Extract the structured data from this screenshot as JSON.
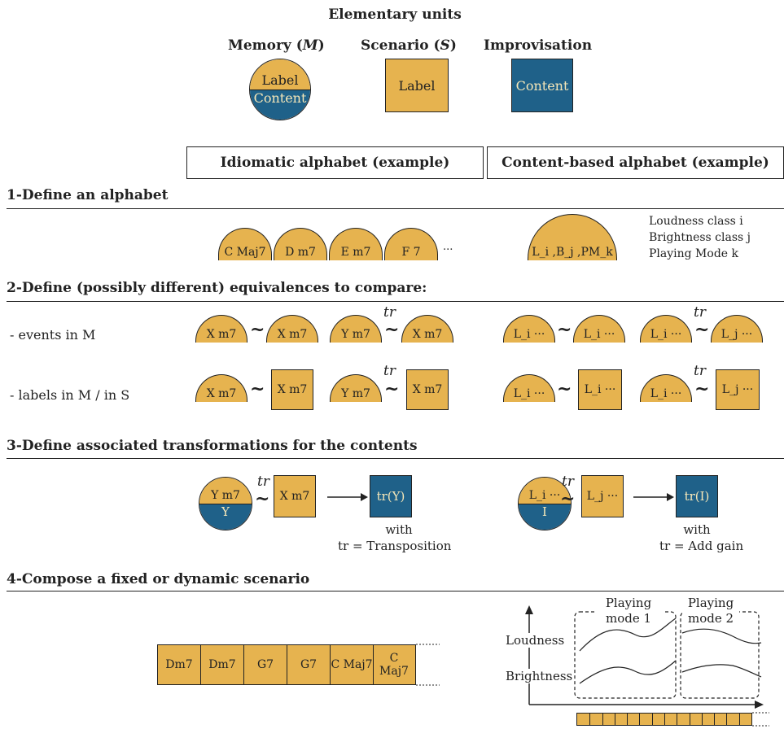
{
  "title": "Elementary units",
  "units": {
    "memory": {
      "title_prefix": "Memory (",
      "title_var": "M",
      "title_suffix": ")",
      "top": "Label",
      "bottom": "Content"
    },
    "scenario": {
      "title_prefix": "Scenario (",
      "title_var": "S",
      "title_suffix": ")",
      "content": "Label"
    },
    "improvisation": {
      "title": "Improvisation",
      "content": "Content"
    }
  },
  "columns": {
    "idiomatic": "Idiomatic alphabet (example)",
    "content_based": "Content-based alphabet (example)"
  },
  "step1": {
    "heading": "1-Define an alphabet",
    "idiomatic_labels": [
      "C Maj7",
      "D m7",
      "E m7",
      "F 7"
    ],
    "ellipsis": "...",
    "content_label": "L_i ,B_j ,PM_k",
    "legend": [
      "Loudness class i",
      "Brightness class j",
      "Playing Mode k"
    ]
  },
  "step2": {
    "heading": "2-Define (possibly different) equivalences to compare:",
    "row1_label": "- events in M",
    "row2_label": "- labels in M / in S",
    "xm7": "X m7",
    "ym7": "Y m7",
    "li": "L_i ···",
    "lj": "L_j ···",
    "tilde": "~",
    "tr": "tr"
  },
  "step3": {
    "heading": "3-Define associated transformations for the contents",
    "idiomatic": {
      "mem_top": "Y m7",
      "mem_bottom": "Y",
      "scenario": "X m7",
      "result": "tr(Y)",
      "with": "with",
      "tr_def": "tr = Transposition"
    },
    "content": {
      "mem_top": "L_i ···",
      "mem_bottom": "I",
      "scenario": "L_j ···",
      "result": "tr(I)",
      "with": "with",
      "tr_def": "tr = Add gain"
    }
  },
  "step4": {
    "heading": "4-Compose a fixed or dynamic scenario",
    "fixed_cells": [
      "Dm7",
      "Dm7",
      "G7",
      "G7",
      "C Maj7",
      "C Maj7"
    ],
    "dynamic": {
      "mode1": "Playing mode 1",
      "mode2": "Playing mode 2",
      "loudness": "Loudness",
      "brightness": "Brightness",
      "cell_count": 14
    }
  },
  "colors": {
    "yellow": "#E6B34F",
    "blue": "#1F6189",
    "cream": "#F6E7B8"
  }
}
